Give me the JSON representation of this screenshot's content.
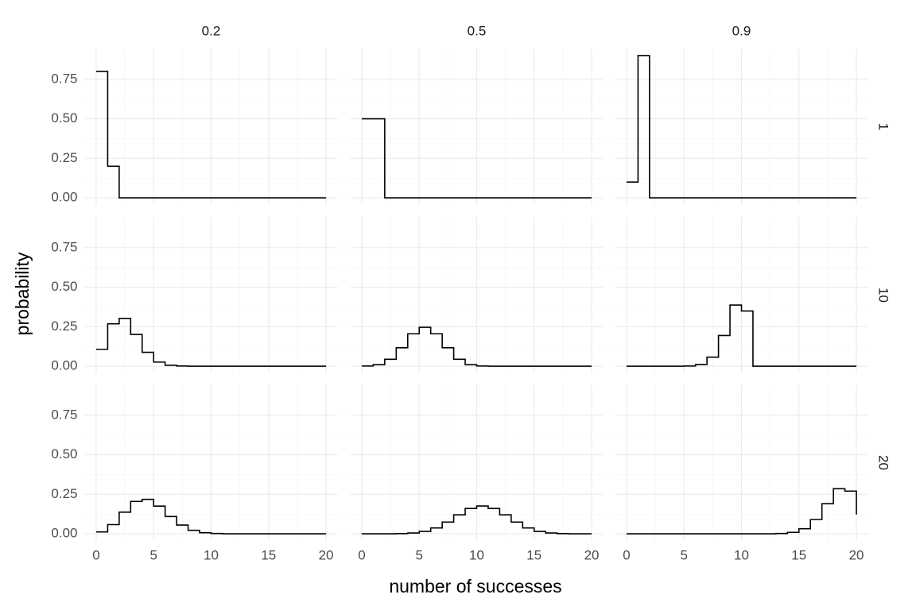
{
  "chart_data": {
    "type": "step",
    "x_label": "number of successes",
    "y_label": "probability",
    "columns": [
      "0.2",
      "0.5",
      "0.9"
    ],
    "x": [
      0,
      1,
      2,
      3,
      4,
      5,
      6,
      7,
      8,
      9,
      10,
      11,
      12,
      13,
      14,
      15,
      16,
      17,
      18,
      19,
      20
    ],
    "xlim": [
      -1,
      21
    ],
    "xticks": [
      0,
      5,
      10,
      15,
      20
    ],
    "ylim": [
      -0.045,
      0.945
    ],
    "yticks": [
      {
        "value": 0,
        "label": "0.00"
      },
      {
        "value": 0.25,
        "label": "0.25"
      },
      {
        "value": 0.5,
        "label": "0.50"
      },
      {
        "value": 0.75,
        "label": "0.75"
      }
    ],
    "grid": true,
    "color": "#000000",
    "panels": [
      {
        "strip": "1",
        "cells": [
          [
            0.8,
            0.2,
            0,
            0,
            0,
            0,
            0,
            0,
            0,
            0,
            0,
            0,
            0,
            0,
            0,
            0,
            0,
            0,
            0,
            0,
            0
          ],
          [
            0.5,
            0.5,
            0,
            0,
            0,
            0,
            0,
            0,
            0,
            0,
            0,
            0,
            0,
            0,
            0,
            0,
            0,
            0,
            0,
            0,
            0
          ],
          [
            0.1,
            0.9,
            0,
            0,
            0,
            0,
            0,
            0,
            0,
            0,
            0,
            0,
            0,
            0,
            0,
            0,
            0,
            0,
            0,
            0,
            0
          ]
        ]
      },
      {
        "strip": "10",
        "cells": [
          [
            0.107,
            0.268,
            0.302,
            0.201,
            0.088,
            0.026,
            0.006,
            0.001,
            0,
            0,
            0,
            0,
            0,
            0,
            0,
            0,
            0,
            0,
            0,
            0,
            0
          ],
          [
            0.001,
            0.01,
            0.044,
            0.117,
            0.205,
            0.246,
            0.205,
            0.117,
            0.044,
            0.01,
            0.001,
            0,
            0,
            0,
            0,
            0,
            0,
            0,
            0,
            0,
            0
          ],
          [
            0,
            0,
            0,
            0,
            0,
            0.001,
            0.011,
            0.057,
            0.194,
            0.387,
            0.349,
            0,
            0,
            0,
            0,
            0,
            0,
            0,
            0,
            0,
            0
          ]
        ]
      },
      {
        "strip": "20",
        "cells": [
          [
            0.012,
            0.058,
            0.137,
            0.205,
            0.218,
            0.175,
            0.109,
            0.055,
            0.022,
            0.007,
            0.002,
            0,
            0,
            0,
            0,
            0,
            0,
            0,
            0,
            0,
            0
          ],
          [
            0,
            0,
            0,
            0.001,
            0.005,
            0.015,
            0.037,
            0.074,
            0.12,
            0.16,
            0.176,
            0.16,
            0.12,
            0.074,
            0.037,
            0.015,
            0.005,
            0.001,
            0,
            0,
            0
          ],
          [
            0,
            0,
            0,
            0,
            0,
            0,
            0,
            0,
            0,
            0,
            0,
            0,
            0,
            0.002,
            0.009,
            0.032,
            0.09,
            0.19,
            0.285,
            0.27,
            0.122
          ]
        ]
      }
    ]
  }
}
